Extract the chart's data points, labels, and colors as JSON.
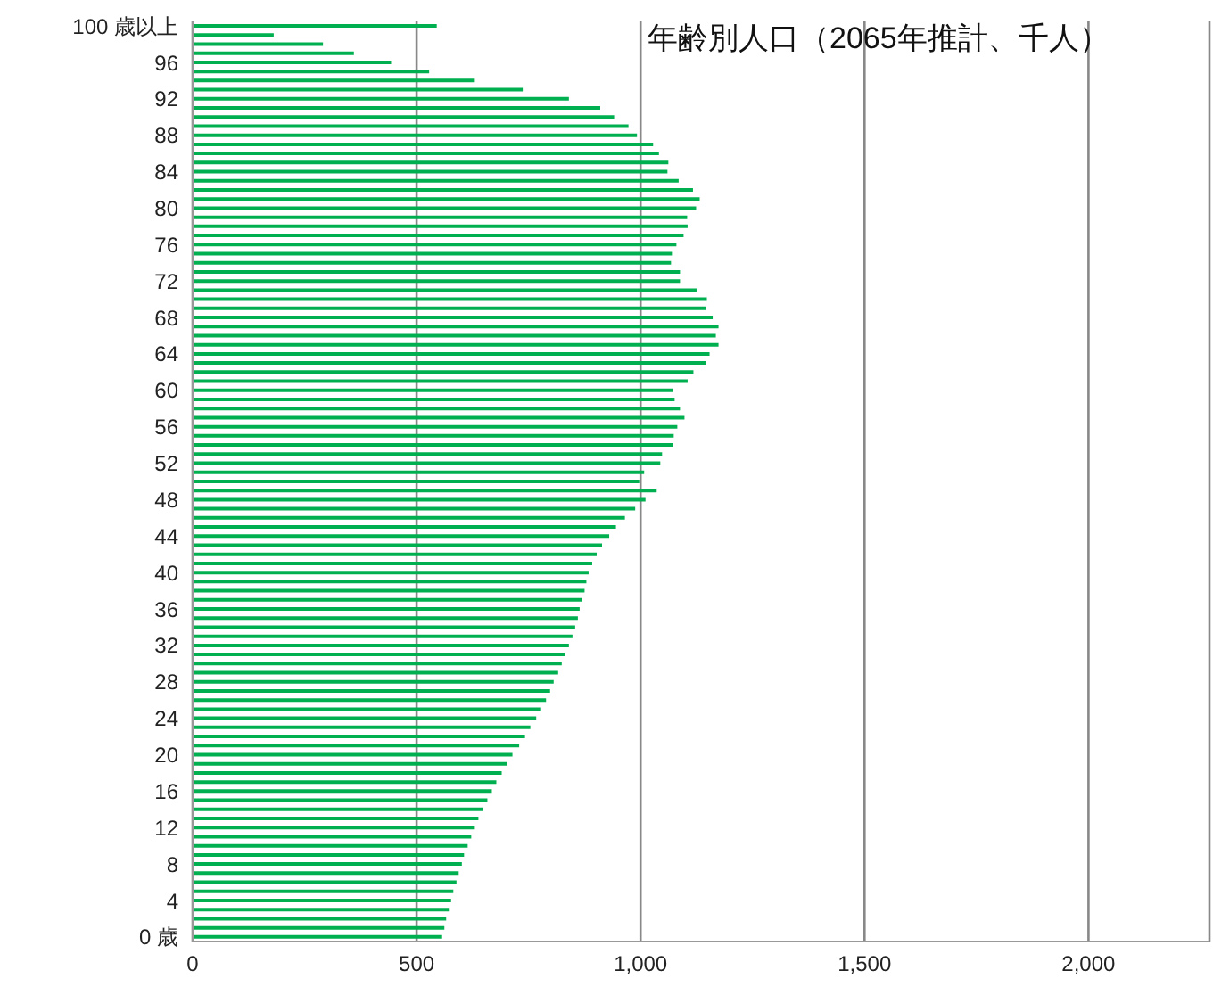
{
  "chart_data": {
    "type": "bar",
    "orientation": "horizontal",
    "title": "年齢別人口（2065年推計、千人）",
    "categories": [
      "100 歳以上",
      null,
      null,
      null,
      "96",
      null,
      null,
      null,
      "92",
      null,
      null,
      null,
      "88",
      null,
      null,
      null,
      "84",
      null,
      null,
      null,
      "80",
      null,
      null,
      null,
      "76",
      null,
      null,
      null,
      "72",
      null,
      null,
      null,
      "68",
      null,
      null,
      null,
      "64",
      null,
      null,
      null,
      "60",
      null,
      null,
      null,
      "56",
      null,
      null,
      null,
      "52",
      null,
      null,
      null,
      "48",
      null,
      null,
      null,
      "44",
      null,
      null,
      null,
      "40",
      null,
      null,
      null,
      "36",
      null,
      null,
      null,
      "32",
      null,
      null,
      null,
      "28",
      null,
      null,
      null,
      "24",
      null,
      null,
      null,
      "20",
      null,
      null,
      null,
      "16",
      null,
      null,
      null,
      "12",
      null,
      null,
      null,
      "8",
      null,
      null,
      null,
      "4",
      null,
      null,
      null,
      "0 歳"
    ],
    "values": [
      545,
      181,
      291,
      360,
      443,
      528,
      630,
      737,
      840,
      910,
      941,
      973,
      992,
      1028,
      1041,
      1062,
      1060,
      1085,
      1117,
      1132,
      1124,
      1104,
      1105,
      1096,
      1080,
      1070,
      1068,
      1088,
      1088,
      1125,
      1148,
      1145,
      1161,
      1174,
      1168,
      1174,
      1154,
      1145,
      1118,
      1105,
      1073,
      1076,
      1088,
      1098,
      1082,
      1074,
      1073,
      1048,
      1044,
      1008,
      997,
      1036,
      1011,
      988,
      965,
      945,
      930,
      914,
      902,
      892,
      884,
      879,
      875,
      870,
      864,
      860,
      854,
      848,
      840,
      832,
      824,
      816,
      806,
      798,
      789,
      778,
      767,
      754,
      742,
      729,
      714,
      702,
      690,
      678,
      668,
      658,
      649,
      638,
      630,
      622,
      614,
      606,
      601,
      594,
      589,
      582,
      577,
      572,
      566,
      562,
      557
    ],
    "color": "#00b050",
    "xlim": [
      0,
      2270
    ],
    "xticks": [
      0,
      500,
      {
        "value": 1000,
        "label": "1,000"
      },
      {
        "value": 1500,
        "label": "1,500"
      },
      {
        "value": 2000,
        "label": "2,000"
      }
    ],
    "grid": "x"
  }
}
